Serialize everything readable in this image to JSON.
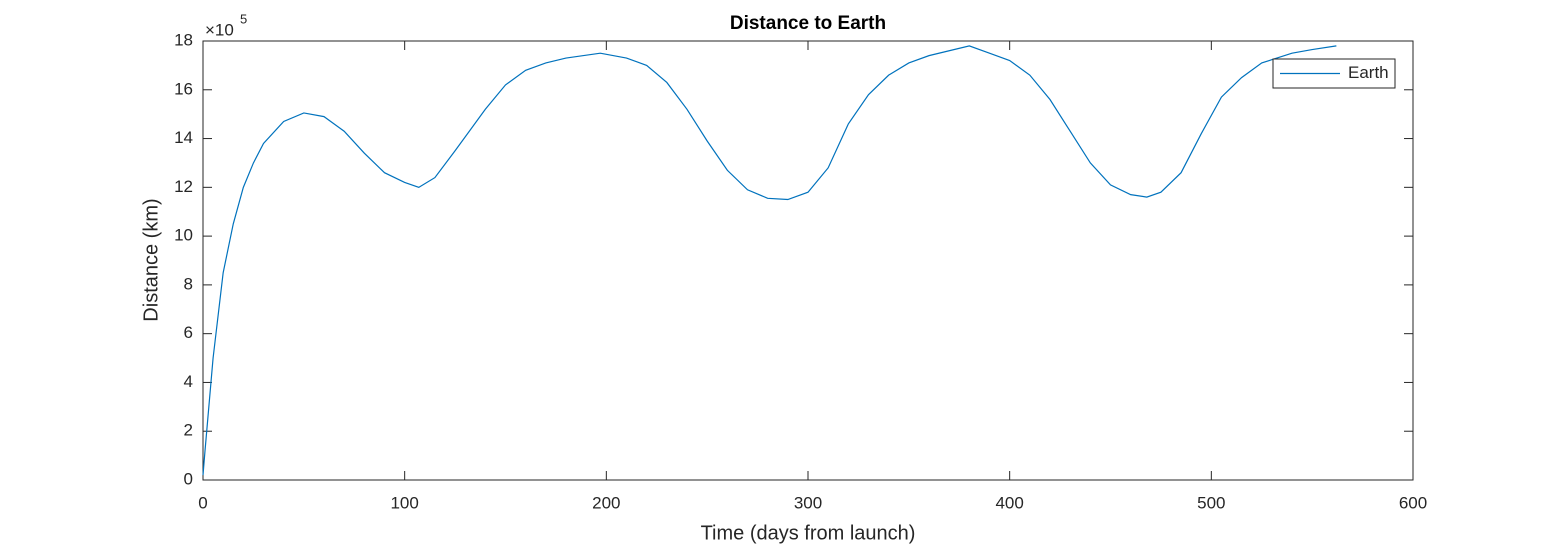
{
  "chart_data": {
    "type": "line",
    "title": "Distance to Earth",
    "x_label": "Time (days from launch)",
    "y_label": "Distance (km)",
    "y_multiplier": {
      "base": "×10",
      "exponent": "5"
    },
    "xlim": [
      0,
      600
    ],
    "ylim": [
      0,
      18
    ],
    "xticks": [
      0,
      100,
      200,
      300,
      400,
      500,
      600
    ],
    "yticks": [
      0,
      2,
      4,
      6,
      8,
      10,
      12,
      14,
      16,
      18
    ],
    "legend_position": "upper-right",
    "grid": false,
    "x": [
      0,
      1,
      5,
      10,
      15,
      20,
      25,
      30,
      40,
      50,
      60,
      70,
      80,
      90,
      100,
      107,
      115,
      125,
      140,
      150,
      160,
      170,
      180,
      197,
      210,
      220,
      230,
      240,
      250,
      260,
      270,
      280,
      290,
      300,
      310,
      320,
      330,
      340,
      350,
      360,
      370,
      380,
      390,
      400,
      410,
      420,
      430,
      440,
      450,
      460,
      468,
      475,
      485,
      495,
      505,
      515,
      525,
      540,
      550,
      562
    ],
    "series": [
      {
        "name": "Earth",
        "color": "#0072bd",
        "values": [
          0.2,
          1.2,
          5,
          8.5,
          10.5,
          12,
          13,
          13.8,
          14.7,
          15.05,
          14.9,
          14.3,
          13.4,
          12.6,
          12.2,
          12.0,
          12.4,
          13.5,
          15.2,
          16.2,
          16.8,
          17.1,
          17.3,
          17.5,
          17.3,
          17.0,
          16.3,
          15.2,
          13.9,
          12.7,
          11.9,
          11.55,
          11.5,
          11.8,
          12.8,
          14.6,
          15.8,
          16.6,
          17.1,
          17.4,
          17.6,
          17.8,
          17.5,
          17.2,
          16.6,
          15.6,
          14.3,
          13.0,
          12.1,
          11.7,
          11.6,
          11.8,
          12.6,
          14.2,
          15.7,
          16.5,
          17.1,
          17.5,
          17.65,
          17.8
        ]
      }
    ]
  }
}
